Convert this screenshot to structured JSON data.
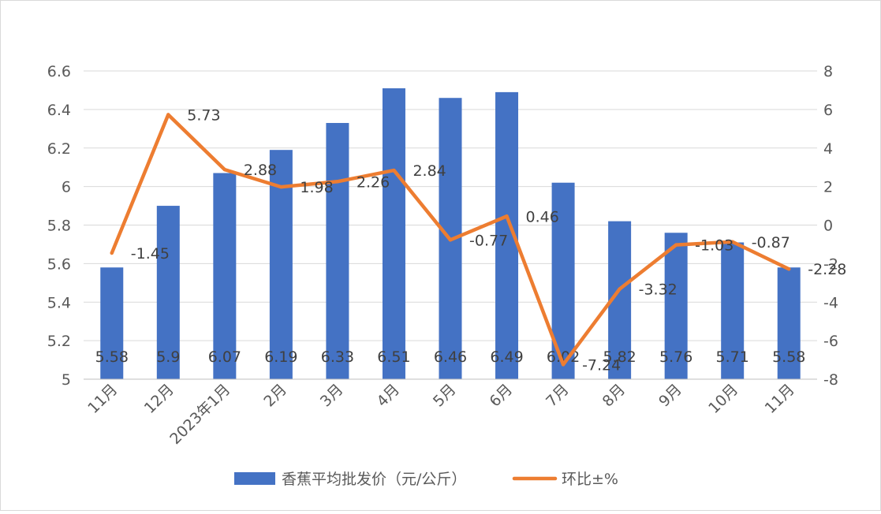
{
  "chart_data": {
    "type": "bar",
    "categories": [
      "11月",
      "12月",
      "2023年1月",
      "2月",
      "3月",
      "4月",
      "5月",
      "6月",
      "7月",
      "8月",
      "9月",
      "10月",
      "11月"
    ],
    "series": [
      {
        "name": "香蕉平均批发价（元/公斤）",
        "type": "bar",
        "axis": "left",
        "color": "#4472C4",
        "values": [
          5.58,
          5.9,
          6.07,
          6.19,
          6.33,
          6.51,
          6.46,
          6.49,
          6.02,
          5.82,
          5.76,
          5.71,
          5.58
        ],
        "labels": [
          "5.58",
          "5.9",
          "6.07",
          "6.19",
          "6.33",
          "6.51",
          "6.46",
          "6.49",
          "6.02",
          "5.82",
          "5.76",
          "5.71",
          "5.58"
        ]
      },
      {
        "name": "环比±%",
        "type": "line",
        "axis": "right",
        "color": "#ED7D31",
        "values": [
          -1.45,
          5.73,
          2.88,
          1.98,
          2.26,
          2.84,
          -0.77,
          0.46,
          -7.24,
          -3.32,
          -1.03,
          -0.87,
          -2.28
        ],
        "labels": [
          "-1.45",
          "5.73",
          "2.88",
          "1.98",
          "2.26",
          "2.84",
          "-0.77",
          "0.46",
          "-7.24",
          "-3.32",
          "-1.03",
          "-0.87",
          "-2.28"
        ]
      }
    ],
    "y_left": {
      "min": 5,
      "max": 6.6,
      "step": 0.2,
      "ticks": [
        "5",
        "5.2",
        "5.4",
        "5.6",
        "5.8",
        "6",
        "6.2",
        "6.4",
        "6.6"
      ]
    },
    "y_right": {
      "min": -8,
      "max": 8,
      "step": 2,
      "ticks": [
        "-8",
        "-6",
        "-4",
        "-2",
        "0",
        "2",
        "4",
        "6",
        "8"
      ]
    },
    "grid": true,
    "legend": "bottom"
  }
}
